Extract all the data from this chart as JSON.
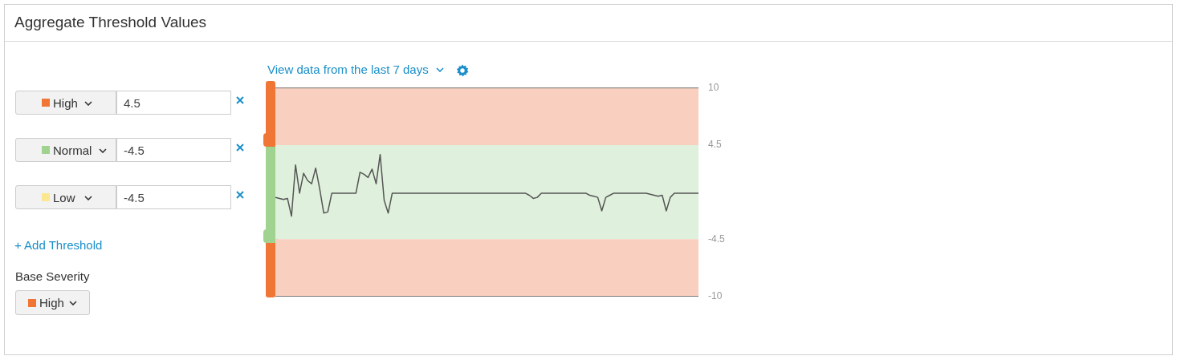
{
  "chart_data": [
    {
      "type": "other",
      "title": "Aggregate Threshold Values",
      "annotations": [
        "High",
        "4.5",
        "Normal",
        "-4.5",
        "Low",
        "-4.5",
        "+ Add Threshold",
        "Base Severity",
        "High"
      ]
    },
    {
      "type": "line",
      "subtitle": "View data from the last 7 days",
      "categories": [
        null,
        null,
        null,
        null,
        null,
        null,
        null,
        null,
        null,
        null,
        null,
        null,
        null,
        null,
        null,
        null,
        null,
        null,
        null,
        null,
        null,
        null,
        null,
        null,
        null,
        null,
        null,
        null,
        null,
        null,
        null,
        null,
        null,
        null,
        null,
        null,
        null,
        null,
        null,
        null,
        null,
        null,
        null,
        null,
        null,
        null,
        null,
        null,
        null,
        null,
        null,
        null,
        null,
        null,
        null,
        null,
        null,
        null,
        null,
        null,
        null,
        null,
        null,
        null,
        null,
        null,
        null,
        null,
        null,
        null,
        null,
        null,
        null,
        null,
        null,
        null,
        null,
        null,
        null,
        null,
        null,
        null,
        null,
        null,
        null,
        null,
        null,
        null,
        null,
        null,
        null,
        null,
        null,
        null,
        null,
        null,
        null,
        null,
        null,
        null,
        null,
        null,
        null,
        null,
        null,
        null
      ],
      "series": [
        {
          "color": "#555555",
          "values": [
            -0.5,
            -0.6,
            -0.7,
            -0.6,
            -2.3,
            2.6,
            -0.1,
            1.8,
            1.1,
            0.8,
            2.3,
            0.3,
            -2.0,
            -1.9,
            -0.1,
            -0.1,
            -0.1,
            -0.1,
            -0.1,
            -0.1,
            -0.1,
            1.9,
            1.7,
            1.4,
            2.2,
            0.8,
            3.6,
            -0.8,
            -2.0,
            -0.1,
            -0.1,
            -0.1,
            -0.1,
            -0.1,
            -0.1,
            -0.1,
            -0.1,
            -0.1,
            -0.1,
            -0.1,
            -0.1,
            -0.1,
            -0.1,
            -0.1,
            -0.1,
            -0.1,
            -0.1,
            -0.1,
            -0.1,
            -0.1,
            -0.1,
            -0.1,
            -0.1,
            -0.1,
            -0.1,
            -0.1,
            -0.1,
            -0.1,
            -0.1,
            -0.1,
            -0.1,
            -0.1,
            -0.1,
            -0.3,
            -0.6,
            -0.5,
            -0.1,
            -0.1,
            -0.1,
            -0.1,
            -0.1,
            -0.1,
            -0.1,
            -0.1,
            -0.1,
            -0.1,
            -0.1,
            -0.1,
            -0.3,
            -0.4,
            -0.5,
            -1.8,
            -0.5,
            -0.3,
            -0.1,
            -0.1,
            -0.1,
            -0.1,
            -0.1,
            -0.1,
            -0.1,
            -0.1,
            -0.1,
            -0.2,
            -0.3,
            -0.4,
            -0.3,
            -1.8,
            -0.5,
            -0.1,
            -0.1,
            -0.1,
            -0.1,
            -0.1,
            -0.1,
            -0.1
          ]
        }
      ],
      "ylim": [
        -10,
        10
      ],
      "yticks": [
        10,
        4.5,
        -4.5,
        -10
      ],
      "bands": [
        {
          "axis": "y",
          "from": 4.5,
          "to": 10,
          "color": "#f9d0c0"
        },
        {
          "axis": "y",
          "from": -4.5,
          "to": 4.5,
          "color": "#dff0dc"
        },
        {
          "axis": "y",
          "from": -10,
          "to": -4.5,
          "color": "#f9d0c0"
        }
      ],
      "grid": false,
      "legend": false,
      "marker": "none",
      "line_style": "solid",
      "tick_labels": "y"
    }
  ]
}
